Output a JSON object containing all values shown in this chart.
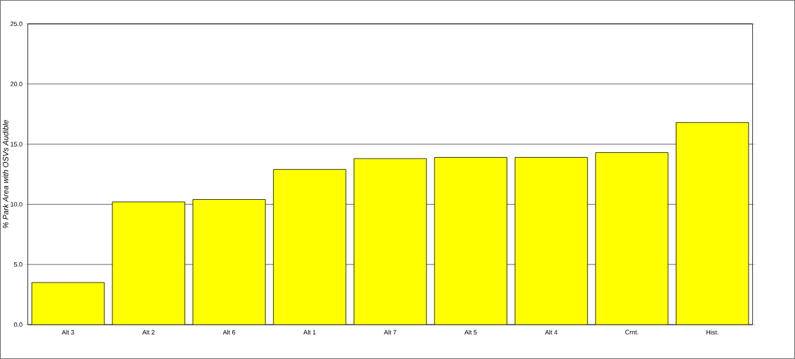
{
  "chart_data": {
    "type": "bar",
    "ylabel": "% Park Area with OSVs Audible",
    "categories": [
      "Alt 3",
      "Alt 2",
      "Alt 6",
      "Alt 1",
      "Alt 7",
      "Alt 5",
      "Alt 4",
      "Crnt.",
      "Hist."
    ],
    "values": [
      3.5,
      10.2,
      10.4,
      12.9,
      13.8,
      13.9,
      13.9,
      14.3,
      16.8
    ],
    "color": "#ffff00",
    "ylim": [
      0,
      25
    ],
    "yticks": [
      {
        "value": 0,
        "label": "0.0"
      },
      {
        "value": 5,
        "label": "5.0"
      },
      {
        "value": 10,
        "label": "10.0"
      },
      {
        "value": 15,
        "label": "15.0"
      },
      {
        "value": 20,
        "label": "20.0"
      },
      {
        "value": 25,
        "label": "25.0"
      }
    ],
    "grid": "y"
  }
}
